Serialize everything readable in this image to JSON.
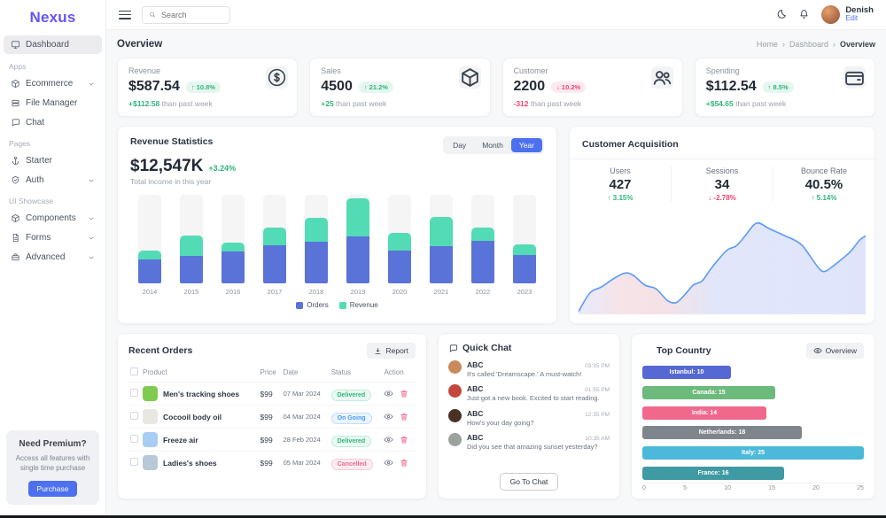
{
  "app": {
    "logo": "Nexus"
  },
  "topbar": {
    "search_placeholder": "Search",
    "user": {
      "name": "Denish",
      "edit_label": "Edit"
    }
  },
  "sidebar": {
    "dashboard": {
      "label": "Dashboard",
      "icon": "dashboard"
    },
    "sections": [
      {
        "label": "Apps",
        "items": [
          {
            "label": "Ecommerce",
            "icon": "cube",
            "chevron": true
          },
          {
            "label": "File Manager",
            "icon": "server",
            "chevron": false
          },
          {
            "label": "Chat",
            "icon": "chat",
            "chevron": false
          }
        ]
      },
      {
        "label": "Pages",
        "items": [
          {
            "label": "Starter",
            "icon": "starter",
            "chevron": false
          },
          {
            "label": "Auth",
            "icon": "shield",
            "chevron": true
          }
        ]
      },
      {
        "label": "UI Showcase",
        "items": [
          {
            "label": "Components",
            "icon": "cube",
            "chevron": true
          },
          {
            "label": "Forms",
            "icon": "doc",
            "chevron": true
          },
          {
            "label": "Advanced",
            "icon": "briefcase",
            "chevron": true
          }
        ]
      }
    ],
    "premium": {
      "title": "Need Premium?",
      "text": "Access all features with single time purchase",
      "button": "Purchase"
    }
  },
  "page": {
    "title": "Overview",
    "breadcrumb": [
      "Home",
      "Dashboard",
      "Overview"
    ]
  },
  "stat_cards": [
    {
      "label": "Revenue",
      "value": "$587.54",
      "pct": "10.8%",
      "direction": "up",
      "delta": "+$112.58",
      "note": "than past week",
      "icon": "dollar"
    },
    {
      "label": "Sales",
      "value": "4500",
      "pct": "21.2%",
      "direction": "up",
      "delta": "+25",
      "note": "than past week",
      "icon": "box"
    },
    {
      "label": "Customer",
      "value": "2200",
      "pct": "10.2%",
      "direction": "down",
      "delta": "-312",
      "note": "than past week",
      "icon": "users"
    },
    {
      "label": "Spending",
      "value": "$112.54",
      "pct": "8.5%",
      "direction": "up",
      "delta": "+$54.65",
      "note": "than past week",
      "icon": "wallet"
    }
  ],
  "revenue_statistics": {
    "title": "Revenue Statistics",
    "total": "$12,547K",
    "change": "+3.24%",
    "subtitle": "Total income in this year",
    "tabs": [
      "Day",
      "Month",
      "Year"
    ],
    "active_tab": "Year"
  },
  "customer_acquisition": {
    "title": "Customer Acquisition",
    "stats": [
      {
        "label": "Users",
        "value": "427",
        "change": "3.15%",
        "direction": "up"
      },
      {
        "label": "Sessions",
        "value": "34",
        "change": "-2.78%",
        "direction": "down"
      },
      {
        "label": "Bounce Rate",
        "value": "40.5%",
        "change": "5.14%",
        "direction": "up"
      }
    ]
  },
  "recent_orders": {
    "title": "Recent Orders",
    "report_button": "Report",
    "columns": [
      "Product",
      "Price",
      "Date",
      "Status",
      "Action"
    ],
    "rows": [
      {
        "name": "Men's tracking shoes",
        "thumb": "#7ecb4f",
        "price": "$99",
        "date": "07 Mar 2024",
        "status": "Delivered",
        "status_key": "delivered"
      },
      {
        "name": "Cocooil body oil",
        "thumb": "#e9e7e2",
        "price": "$99",
        "date": "04 Mar 2024",
        "status": "On Going",
        "status_key": "ongoing"
      },
      {
        "name": "Freeze air",
        "thumb": "#a8cdf3",
        "price": "$99",
        "date": "28 Feb 2024",
        "status": "Delivered",
        "status_key": "delivered"
      },
      {
        "name": "Ladies's shoes",
        "thumb": "#b9c8d6",
        "price": "$99",
        "date": "05 Mar 2024",
        "status": "Cancelled",
        "status_key": "cancelled"
      }
    ],
    "status_styles": {
      "delivered": {
        "fg": "#2eb67d",
        "bg": "#eafaf2",
        "border": "#bfeeda"
      },
      "ongoing": {
        "fg": "#4a9bf5",
        "bg": "#ebf4ff",
        "border": "#c4def8"
      },
      "cancelled": {
        "fg": "#f2688c",
        "bg": "#fdeef2",
        "border": "#f8c9d6"
      }
    }
  },
  "quick_chat": {
    "title": "Quick Chat",
    "messages": [
      {
        "name": "ABC",
        "time": "03:35 PM",
        "text": "It's called 'Dreamscape.' A must-watch!",
        "avatar_color": "#c98a5b"
      },
      {
        "name": "ABC",
        "time": "01:55 PM",
        "text": "Just got a new book. Excited to start reading.",
        "avatar_color": "#c4473d"
      },
      {
        "name": "ABC",
        "time": "12:35 PM",
        "text": "How's your day going?",
        "avatar_color": "#4a3126"
      },
      {
        "name": "ABC",
        "time": "10:35 AM",
        "text": "Did you see that amazing sunset yesterday?",
        "avatar_color": "#9aa29b"
      }
    ],
    "button": "Go To Chat"
  },
  "top_country": {
    "title": "Top Country",
    "overview_button": "Overview"
  },
  "colors": {
    "primary": "#4c70f0",
    "logo": "#6553f5",
    "green": "#2eb67d",
    "red": "#f2426e",
    "bar_orders": "#5a73d8",
    "bar_revenue": "#53dbb5",
    "bar_track": "#f5f5f6",
    "area_line": "#5b9cf6"
  },
  "chart_data": [
    {
      "type": "bar",
      "stacked": true,
      "title": "Revenue Statistics",
      "categories": [
        "2014",
        "2015",
        "2016",
        "2017",
        "2018",
        "2019",
        "2020",
        "2021",
        "2022",
        "2023"
      ],
      "series": [
        {
          "name": "Orders",
          "color": "#5a73d8",
          "values": [
            27,
            31,
            36,
            43,
            47,
            53,
            37,
            42,
            48,
            32
          ]
        },
        {
          "name": "Revenue",
          "color": "#53dbb5",
          "values": [
            10,
            23,
            10,
            20,
            27,
            43,
            20,
            33,
            15,
            12
          ]
        }
      ],
      "unit": "percent-of-max-bar-height",
      "ylim": [
        0,
        100
      ],
      "legend_position": "bottom",
      "background_tracks": true
    },
    {
      "type": "area",
      "title": "Customer Acquisition trend",
      "x_axis": "hidden",
      "y_axis": "hidden",
      "line_color": "#5b9cf6",
      "points_pct": [
        [
          0,
          3
        ],
        [
          4,
          22
        ],
        [
          8,
          28
        ],
        [
          12,
          36
        ],
        [
          16,
          42
        ],
        [
          19,
          40
        ],
        [
          23,
          30
        ],
        [
          27,
          26
        ],
        [
          31,
          14
        ],
        [
          34,
          12
        ],
        [
          37,
          20
        ],
        [
          40,
          30
        ],
        [
          43,
          34
        ],
        [
          46,
          46
        ],
        [
          49,
          57
        ],
        [
          52,
          66
        ],
        [
          55,
          70
        ],
        [
          58,
          80
        ],
        [
          61,
          91
        ],
        [
          63,
          93
        ],
        [
          66,
          88
        ],
        [
          69,
          84
        ],
        [
          72,
          80
        ],
        [
          75,
          76
        ],
        [
          78,
          70
        ],
        [
          81,
          58
        ],
        [
          84,
          46
        ],
        [
          86,
          44
        ],
        [
          89,
          50
        ],
        [
          92,
          57
        ],
        [
          95,
          65
        ],
        [
          98,
          76
        ],
        [
          100,
          80
        ]
      ]
    },
    {
      "type": "bar",
      "orientation": "horizontal",
      "title": "Top Country",
      "categories": [
        "Istanbul",
        "Canada",
        "India",
        "Netherlands",
        "Italy",
        "France"
      ],
      "values": [
        10,
        15,
        14,
        18,
        25,
        16
      ],
      "colors": [
        "#5568d3",
        "#6cba7c",
        "#f2688c",
        "#7f858c",
        "#4cb9da",
        "#3f9aa3"
      ],
      "xlim": [
        0,
        25
      ],
      "xticks": [
        0,
        5,
        10,
        15,
        20,
        25
      ],
      "label_format": "{category}: {value}"
    }
  ]
}
